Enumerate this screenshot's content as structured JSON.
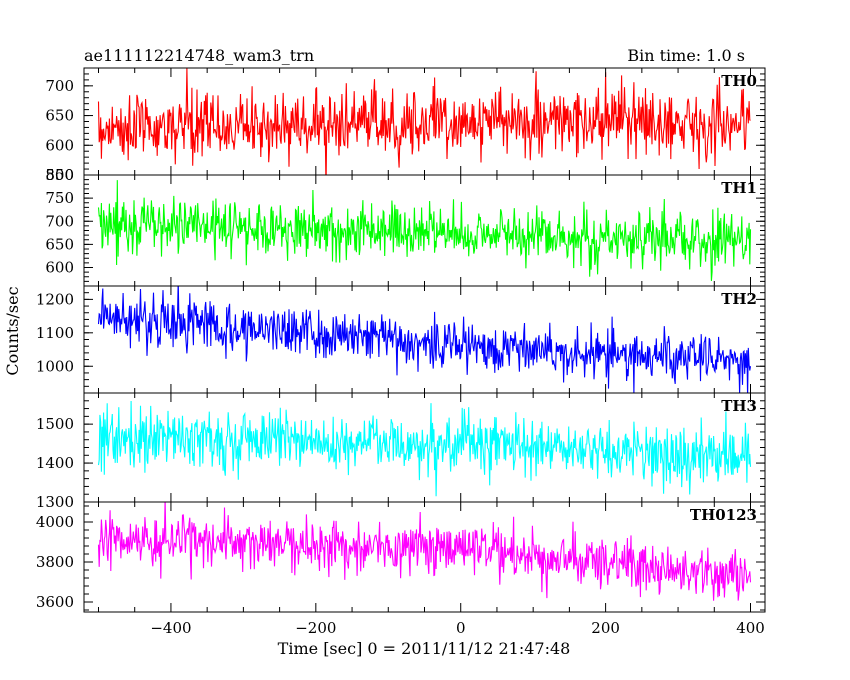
{
  "header": {
    "left_title": "ae111112214748_wam3_trn",
    "right_title": "Bin time: 1.0 s"
  },
  "chart_data": {
    "type": "line",
    "title": "ae111112214748_wam3_trn",
    "xlabel": "Time [sec] 0 = 2011/11/12 21:47:48",
    "ylabel": "Counts/sec",
    "bin_time_s": 1.0,
    "xlim": [
      -520,
      420
    ],
    "x_ticks": [
      -400,
      -200,
      0,
      200,
      400
    ],
    "x_tick_labels": [
      "−400",
      "−200",
      "0",
      "200",
      "400"
    ],
    "data_x_range": [
      -500,
      400
    ],
    "panels": [
      {
        "name": "TH0",
        "color": "#ff0000",
        "ylim": [
          550,
          730
        ],
        "y_ticks": [
          550,
          600,
          650,
          700
        ],
        "y_tick_labels": [
          "550",
          "600",
          "650",
          "700"
        ],
        "trend": [
          [
            -500,
            628
          ],
          [
            0,
            640
          ],
          [
            400,
            638
          ]
        ],
        "noise_sd": 28
      },
      {
        "name": "TH1",
        "color": "#00ff00",
        "ylim": [
          560,
          800
        ],
        "y_ticks": [
          600,
          650,
          700,
          750,
          800
        ],
        "y_tick_labels": [
          "600",
          "650",
          "700",
          "750",
          "800"
        ],
        "trend": [
          [
            -500,
            695
          ],
          [
            0,
            675
          ],
          [
            400,
            655
          ]
        ],
        "noise_sd": 30
      },
      {
        "name": "TH2",
        "color": "#0000ff",
        "ylim": [
          920,
          1240
        ],
        "y_ticks": [
          1000,
          1100,
          1200
        ],
        "y_tick_labels": [
          "1000",
          "1100",
          "1200"
        ],
        "trend": [
          [
            -500,
            1150
          ],
          [
            0,
            1065
          ],
          [
            400,
            1010
          ]
        ],
        "noise_sd": 38
      },
      {
        "name": "TH3",
        "color": "#00ffff",
        "ylim": [
          1300,
          1580
        ],
        "y_ticks": [
          1300,
          1400,
          1500
        ],
        "y_tick_labels": [
          "1300",
          "1400",
          "1500"
        ],
        "trend": [
          [
            -500,
            1470
          ],
          [
            0,
            1450
          ],
          [
            400,
            1410
          ]
        ],
        "noise_sd": 38
      },
      {
        "name": "TH0123",
        "color": "#ff00ff",
        "ylim": [
          3550,
          4100
        ],
        "y_ticks": [
          3600,
          3800,
          4000
        ],
        "y_tick_labels": [
          "3600",
          "3800",
          "4000"
        ],
        "trend": [
          [
            -500,
            3920
          ],
          [
            0,
            3860
          ],
          [
            400,
            3730
          ]
        ],
        "noise_sd": 65
      }
    ]
  }
}
